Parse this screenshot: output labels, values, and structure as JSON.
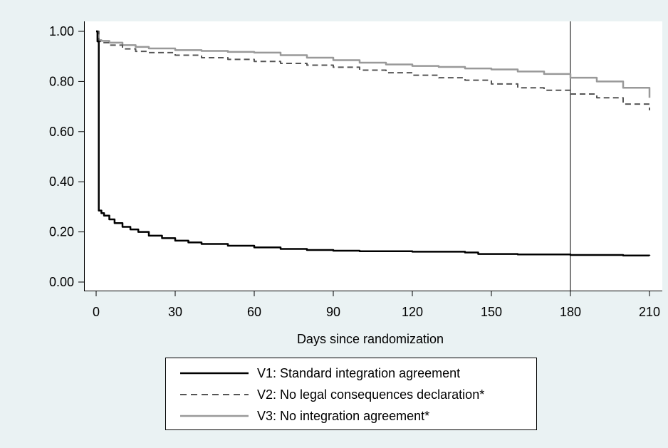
{
  "chart_data": {
    "type": "line",
    "title": "",
    "xlabel": "Days since randomization",
    "ylabel": "",
    "xlim": [
      0,
      210
    ],
    "ylim": [
      0,
      1
    ],
    "x_ticks": [
      0,
      30,
      60,
      90,
      120,
      150,
      180,
      210
    ],
    "x_tick_labels": [
      "0",
      "30",
      "60",
      "90",
      "120",
      "150",
      "180",
      "210"
    ],
    "y_ticks": [
      0,
      0.2,
      0.4,
      0.6,
      0.8,
      1.0
    ],
    "y_tick_labels": [
      "0.00",
      "0.20",
      "0.40",
      "0.60",
      "0.80",
      "1.00"
    ],
    "reference_line_x": 180,
    "grid": false,
    "legend_position": "bottom",
    "series": [
      {
        "name": "V1: Standard integration agreement",
        "color": "#000000",
        "dash": "solid",
        "x": [
          0,
          0.5,
          0.5,
          1,
          1,
          2,
          3,
          5,
          7,
          10,
          13,
          16,
          20,
          25,
          30,
          35,
          40,
          50,
          60,
          70,
          80,
          90,
          100,
          120,
          140,
          145,
          160,
          180,
          200,
          210
        ],
        "y": [
          1.0,
          1.0,
          0.96,
          0.96,
          0.285,
          0.275,
          0.265,
          0.25,
          0.235,
          0.22,
          0.21,
          0.2,
          0.185,
          0.175,
          0.165,
          0.158,
          0.152,
          0.145,
          0.138,
          0.132,
          0.128,
          0.125,
          0.123,
          0.121,
          0.118,
          0.112,
          0.11,
          0.108,
          0.106,
          0.105
        ]
      },
      {
        "name": "V2: No legal consequences declaration*",
        "color": "#555555",
        "dash": "dashed",
        "x": [
          0,
          1,
          2,
          5,
          10,
          15,
          20,
          30,
          40,
          50,
          60,
          70,
          80,
          90,
          100,
          110,
          120,
          130,
          140,
          150,
          160,
          170,
          180,
          190,
          200,
          210
        ],
        "y": [
          1.0,
          0.96,
          0.955,
          0.945,
          0.93,
          0.92,
          0.915,
          0.905,
          0.895,
          0.888,
          0.88,
          0.872,
          0.865,
          0.857,
          0.845,
          0.835,
          0.825,
          0.815,
          0.805,
          0.79,
          0.775,
          0.765,
          0.75,
          0.735,
          0.71,
          0.685
        ]
      },
      {
        "name": "V3: No integration agreement*",
        "color": "#999999",
        "dash": "solid",
        "x": [
          0,
          1,
          2,
          5,
          10,
          15,
          20,
          30,
          40,
          50,
          60,
          70,
          80,
          90,
          100,
          110,
          120,
          130,
          140,
          150,
          160,
          170,
          180,
          190,
          200,
          210
        ],
        "y": [
          1.0,
          0.965,
          0.962,
          0.955,
          0.945,
          0.938,
          0.932,
          0.925,
          0.922,
          0.918,
          0.915,
          0.905,
          0.895,
          0.885,
          0.875,
          0.868,
          0.862,
          0.858,
          0.852,
          0.848,
          0.84,
          0.83,
          0.815,
          0.8,
          0.775,
          0.735
        ]
      }
    ]
  }
}
